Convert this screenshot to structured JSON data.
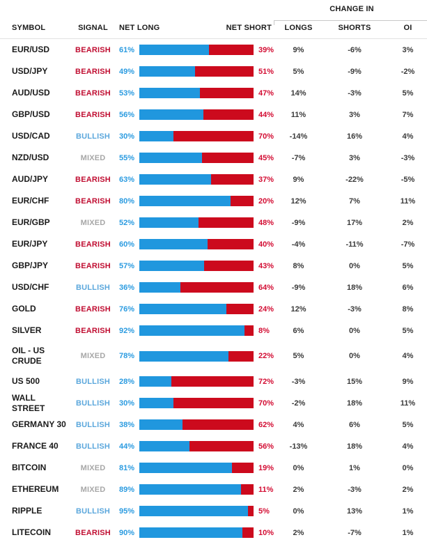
{
  "header": {
    "change_in_label": "CHANGE IN",
    "columns": {
      "symbol": "SYMBOL",
      "signal": "SIGNAL",
      "net_long": "NET LONG",
      "net_short": "NET SHORT",
      "longs": "LONGS",
      "shorts": "SHORTS",
      "oi": "OI"
    }
  },
  "colors": {
    "bar_long": "#2097de",
    "bar_short": "#cc0a1d",
    "net_long_text": "#2b9be0",
    "net_short_text": "#d30d33",
    "signal_bearish": "#c00d31",
    "signal_bullish": "#5ba7dc",
    "signal_mixed": "#a7a7a7",
    "header_text": "#1a1a1a",
    "change_text": "#3a3a3a",
    "separator": "#e2e2e2"
  },
  "rows": [
    {
      "symbol": "EUR/USD",
      "signal": "BEARISH",
      "net_long": "61%",
      "net_short": "39%",
      "longs": "9%",
      "shorts": "-6%",
      "oi": "3%"
    },
    {
      "symbol": "USD/JPY",
      "signal": "BEARISH",
      "net_long": "49%",
      "net_short": "51%",
      "longs": "5%",
      "shorts": "-9%",
      "oi": "-2%"
    },
    {
      "symbol": "AUD/USD",
      "signal": "BEARISH",
      "net_long": "53%",
      "net_short": "47%",
      "longs": "14%",
      "shorts": "-3%",
      "oi": "5%"
    },
    {
      "symbol": "GBP/USD",
      "signal": "BEARISH",
      "net_long": "56%",
      "net_short": "44%",
      "longs": "11%",
      "shorts": "3%",
      "oi": "7%"
    },
    {
      "symbol": "USD/CAD",
      "signal": "BULLISH",
      "net_long": "30%",
      "net_short": "70%",
      "longs": "-14%",
      "shorts": "16%",
      "oi": "4%"
    },
    {
      "symbol": "NZD/USD",
      "signal": "MIXED",
      "net_long": "55%",
      "net_short": "45%",
      "longs": "-7%",
      "shorts": "3%",
      "oi": "-3%"
    },
    {
      "symbol": "AUD/JPY",
      "signal": "BEARISH",
      "net_long": "63%",
      "net_short": "37%",
      "longs": "9%",
      "shorts": "-22%",
      "oi": "-5%"
    },
    {
      "symbol": "EUR/CHF",
      "signal": "BEARISH",
      "net_long": "80%",
      "net_short": "20%",
      "longs": "12%",
      "shorts": "7%",
      "oi": "11%"
    },
    {
      "symbol": "EUR/GBP",
      "signal": "MIXED",
      "net_long": "52%",
      "net_short": "48%",
      "longs": "-9%",
      "shorts": "17%",
      "oi": "2%"
    },
    {
      "symbol": "EUR/JPY",
      "signal": "BEARISH",
      "net_long": "60%",
      "net_short": "40%",
      "longs": "-4%",
      "shorts": "-11%",
      "oi": "-7%"
    },
    {
      "symbol": "GBP/JPY",
      "signal": "BEARISH",
      "net_long": "57%",
      "net_short": "43%",
      "longs": "8%",
      "shorts": "0%",
      "oi": "5%"
    },
    {
      "symbol": "USD/CHF",
      "signal": "BULLISH",
      "net_long": "36%",
      "net_short": "64%",
      "longs": "-9%",
      "shorts": "18%",
      "oi": "6%"
    },
    {
      "symbol": "GOLD",
      "signal": "BEARISH",
      "net_long": "76%",
      "net_short": "24%",
      "longs": "12%",
      "shorts": "-3%",
      "oi": "8%"
    },
    {
      "symbol": "SILVER",
      "signal": "BEARISH",
      "net_long": "92%",
      "net_short": "8%",
      "longs": "6%",
      "shorts": "0%",
      "oi": "5%"
    },
    {
      "symbol": "OIL - US CRUDE",
      "signal": "MIXED",
      "net_long": "78%",
      "net_short": "22%",
      "longs": "5%",
      "shorts": "0%",
      "oi": "4%",
      "tall": true
    },
    {
      "symbol": "US 500",
      "signal": "BULLISH",
      "net_long": "28%",
      "net_short": "72%",
      "longs": "-3%",
      "shorts": "15%",
      "oi": "9%"
    },
    {
      "symbol": "WALL STREET",
      "signal": "BULLISH",
      "net_long": "30%",
      "net_short": "70%",
      "longs": "-2%",
      "shorts": "18%",
      "oi": "11%"
    },
    {
      "symbol": "GERMANY 30",
      "signal": "BULLISH",
      "net_long": "38%",
      "net_short": "62%",
      "longs": "4%",
      "shorts": "6%",
      "oi": "5%"
    },
    {
      "symbol": "FRANCE 40",
      "signal": "BULLISH",
      "net_long": "44%",
      "net_short": "56%",
      "longs": "-13%",
      "shorts": "18%",
      "oi": "4%"
    },
    {
      "symbol": "BITCOIN",
      "signal": "MIXED",
      "net_long": "81%",
      "net_short": "19%",
      "longs": "0%",
      "shorts": "1%",
      "oi": "0%"
    },
    {
      "symbol": "ETHEREUM",
      "signal": "MIXED",
      "net_long": "89%",
      "net_short": "11%",
      "longs": "2%",
      "shorts": "-3%",
      "oi": "2%"
    },
    {
      "symbol": "RIPPLE",
      "signal": "BULLISH",
      "net_long": "95%",
      "net_short": "5%",
      "longs": "0%",
      "shorts": "13%",
      "oi": "1%"
    },
    {
      "symbol": "LITECOIN",
      "signal": "BEARISH",
      "net_long": "90%",
      "net_short": "10%",
      "longs": "2%",
      "shorts": "-7%",
      "oi": "1%"
    }
  ],
  "chart_data": {
    "type": "table",
    "title": "Client sentiment table with net long/short stacked bars and change-in columns",
    "columns": [
      "SYMBOL",
      "SIGNAL",
      "NET LONG %",
      "NET SHORT %",
      "CHANGE IN LONGS %",
      "CHANGE IN SHORTS %",
      "CHANGE IN OI %"
    ],
    "bar_axis_range": [
      0,
      100
    ],
    "rows": [
      [
        "EUR/USD",
        "BEARISH",
        61,
        39,
        9,
        -6,
        3
      ],
      [
        "USD/JPY",
        "BEARISH",
        49,
        51,
        5,
        -9,
        -2
      ],
      [
        "AUD/USD",
        "BEARISH",
        53,
        47,
        14,
        -3,
        5
      ],
      [
        "GBP/USD",
        "BEARISH",
        56,
        44,
        11,
        3,
        7
      ],
      [
        "USD/CAD",
        "BULLISH",
        30,
        70,
        -14,
        16,
        4
      ],
      [
        "NZD/USD",
        "MIXED",
        55,
        45,
        -7,
        3,
        -3
      ],
      [
        "AUD/JPY",
        "BEARISH",
        63,
        37,
        9,
        -22,
        -5
      ],
      [
        "EUR/CHF",
        "BEARISH",
        80,
        20,
        12,
        7,
        11
      ],
      [
        "EUR/GBP",
        "MIXED",
        52,
        48,
        -9,
        17,
        2
      ],
      [
        "EUR/JPY",
        "BEARISH",
        60,
        40,
        -4,
        -11,
        -7
      ],
      [
        "GBP/JPY",
        "BEARISH",
        57,
        43,
        8,
        0,
        5
      ],
      [
        "USD/CHF",
        "BULLISH",
        36,
        64,
        -9,
        18,
        6
      ],
      [
        "GOLD",
        "BEARISH",
        76,
        24,
        12,
        -3,
        8
      ],
      [
        "SILVER",
        "BEARISH",
        92,
        8,
        6,
        0,
        5
      ],
      [
        "OIL - US CRUDE",
        "MIXED",
        78,
        22,
        5,
        0,
        4
      ],
      [
        "US 500",
        "BULLISH",
        28,
        72,
        -3,
        15,
        9
      ],
      [
        "WALL STREET",
        "BULLISH",
        30,
        70,
        -2,
        18,
        11
      ],
      [
        "GERMANY 30",
        "BULLISH",
        38,
        62,
        4,
        6,
        5
      ],
      [
        "FRANCE 40",
        "BULLISH",
        44,
        56,
        -13,
        18,
        4
      ],
      [
        "BITCOIN",
        "MIXED",
        81,
        19,
        0,
        1,
        0
      ],
      [
        "ETHEREUM",
        "MIXED",
        89,
        11,
        2,
        -3,
        2
      ],
      [
        "RIPPLE",
        "BULLISH",
        95,
        5,
        0,
        13,
        1
      ],
      [
        "LITECOIN",
        "BEARISH",
        90,
        10,
        2,
        -7,
        1
      ]
    ]
  }
}
